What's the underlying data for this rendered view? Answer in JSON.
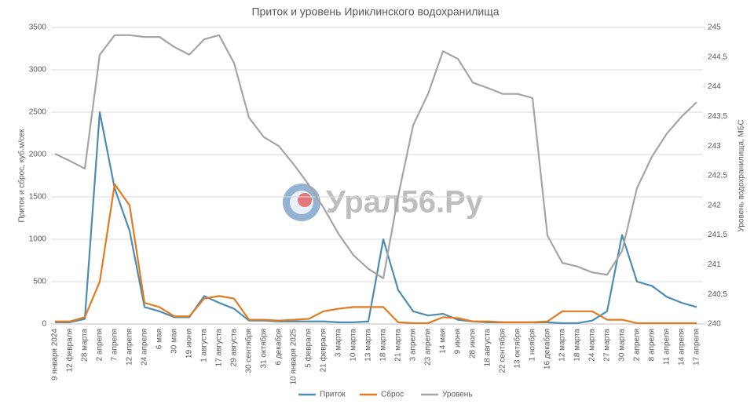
{
  "chart_data": {
    "type": "line",
    "title": "Приток и уровень Ириклинского водохранилища",
    "watermark": "Урал56.Ру",
    "y_label": "Приток и сброс, куб.м/сек",
    "y2_label": "Уровень водохранилища, МБС",
    "categories": [
      "9 января 2024",
      "12 февраля",
      "28 марта",
      "2 апреля",
      "7 апреля",
      "12 апреля",
      "24 апреля",
      "6 мая",
      "30 мая",
      "19 июня",
      "1 августа",
      "17 августа",
      "29 августа",
      "30 сентября",
      "31 октября",
      "6 декабря",
      "10 января 2025",
      "5 февраля",
      "21 февраля",
      "3 марта",
      "10 марта",
      "13 марта",
      "18 марта",
      "21 марта",
      "3 апреля",
      "23 апреля",
      "14 мая",
      "9 июня",
      "28 июля",
      "18 августа",
      "22 сентября",
      "13 октября",
      "1 ноября",
      "16 декабря",
      "12 марта",
      "18 марта",
      "24 марта",
      "27 марта",
      "30 марта",
      "2 апреля",
      "8 апреля",
      "11 апреля",
      "14 апреля",
      "17 апреля"
    ],
    "series": [
      {
        "name": "Приток",
        "color": "#4b8db3",
        "values": [
          20,
          20,
          60,
          2500,
          1600,
          1100,
          200,
          150,
          80,
          80,
          330,
          250,
          180,
          40,
          40,
          30,
          30,
          30,
          30,
          20,
          20,
          30,
          1000,
          400,
          150,
          100,
          120,
          50,
          30,
          20,
          20,
          20,
          20,
          20,
          10,
          10,
          40,
          150,
          1050,
          500,
          450,
          320,
          250,
          200
        ]
      },
      {
        "name": "Сброс",
        "color": "#e07b22",
        "values": [
          30,
          30,
          80,
          500,
          1650,
          1400,
          250,
          200,
          90,
          90,
          300,
          330,
          300,
          50,
          50,
          40,
          50,
          60,
          150,
          180,
          200,
          200,
          200,
          20,
          10,
          10,
          80,
          70,
          30,
          30,
          20,
          20,
          20,
          30,
          150,
          150,
          150,
          50,
          50,
          10,
          10,
          10,
          10,
          10
        ]
      },
      {
        "name": "Уровень",
        "color": "#a5a5a5",
        "axis": "y2",
        "values": [
          242.87,
          242.75,
          242.62,
          244.54,
          244.87,
          244.87,
          244.84,
          244.84,
          244.67,
          244.54,
          244.8,
          244.87,
          244.4,
          243.48,
          243.15,
          243.0,
          242.69,
          242.35,
          241.96,
          241.52,
          241.16,
          240.93,
          240.77,
          242.16,
          243.35,
          243.88,
          244.6,
          244.47,
          244.07,
          243.98,
          243.88,
          243.88,
          243.81,
          241.49,
          241.03,
          240.97,
          240.87,
          240.83,
          241.23,
          242.29,
          242.82,
          243.21,
          243.5,
          243.74
        ]
      }
    ],
    "ylim": [
      0,
      3500
    ],
    "yticks": [
      0,
      500,
      1000,
      1500,
      2000,
      2500,
      3000,
      3500
    ],
    "y2lim": [
      240,
      245
    ],
    "y2ticks": [
      240,
      {
        "value": 240.5,
        "label": "240,5"
      },
      241,
      {
        "value": 241.5,
        "label": "241,5"
      },
      242,
      {
        "value": 242.5,
        "label": "242,5"
      },
      243,
      {
        "value": 243.5,
        "label": "243,5"
      },
      244,
      {
        "value": 244.5,
        "label": "244,5"
      },
      245
    ],
    "grid": true,
    "legend": "bottom"
  }
}
